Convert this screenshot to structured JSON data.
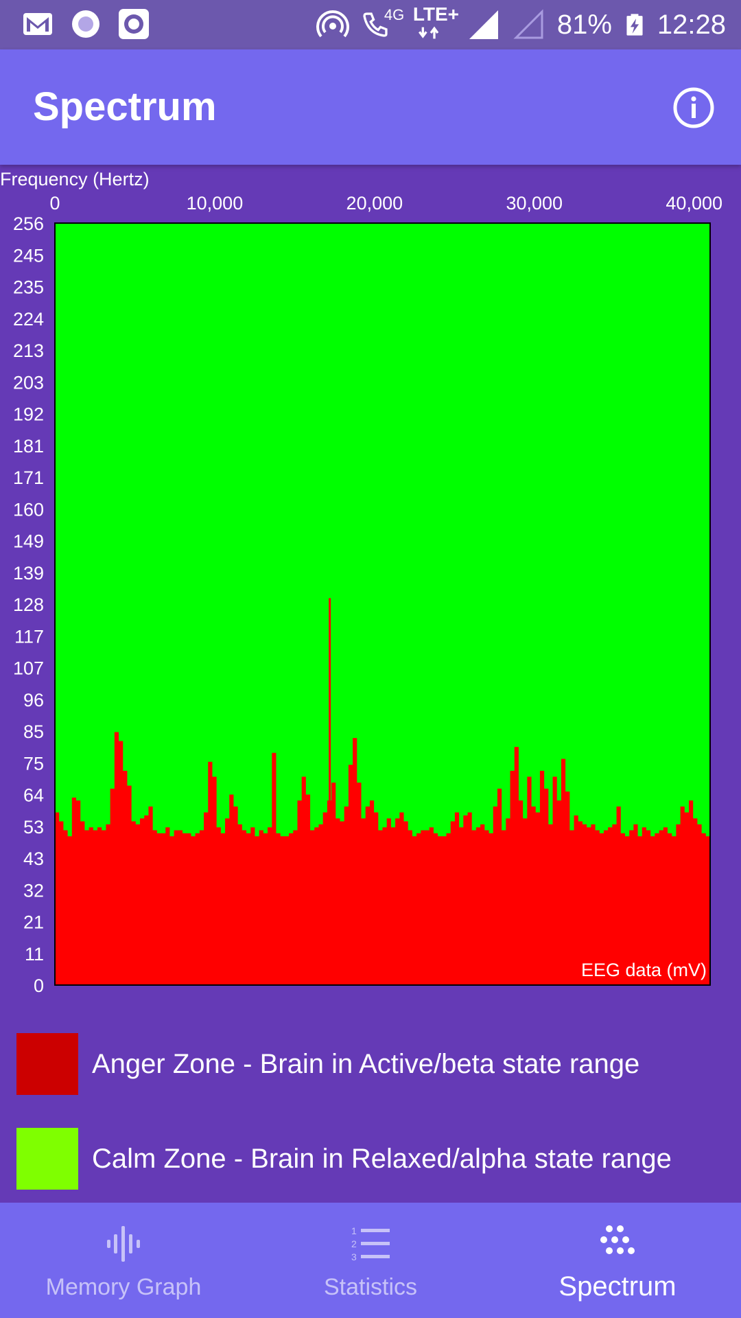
{
  "status_bar": {
    "network_label": "4G",
    "lte_label": "LTE+",
    "battery": "81%",
    "time": "12:28"
  },
  "app_bar": {
    "title": "Spectrum"
  },
  "chart_data": {
    "type": "area",
    "title": "",
    "top_axis_label": "Frequency (Hertz)",
    "inner_label": "EEG data (mV)",
    "x_ticks": [
      "0",
      "10,000",
      "20,000",
      "30,000",
      "40,000"
    ],
    "xlim": [
      0,
      41000
    ],
    "y_ticks": [
      "256",
      "245",
      "235",
      "224",
      "213",
      "203",
      "192",
      "181",
      "171",
      "160",
      "149",
      "139",
      "128",
      "117",
      "107",
      "96",
      "85",
      "75",
      "64",
      "53",
      "43",
      "32",
      "21",
      "11",
      "0"
    ],
    "ylim": [
      0,
      256
    ],
    "series": [
      {
        "name": "Anger Zone - Brain in Active/beta state range",
        "color": "#FF0000",
        "values": [
          58,
          55,
          52,
          50,
          63,
          62,
          55,
          52,
          53,
          52,
          53,
          52,
          54,
          66,
          85,
          82,
          72,
          67,
          55,
          54,
          56,
          57,
          60,
          52,
          51,
          51,
          53,
          50,
          52,
          52,
          51,
          51,
          50,
          51,
          52,
          58,
          75,
          70,
          53,
          51,
          56,
          64,
          60,
          54,
          52,
          51,
          53,
          50,
          52,
          51,
          53,
          78,
          51,
          50,
          50,
          51,
          52,
          62,
          70,
          64,
          52,
          53,
          54,
          58,
          62,
          68,
          56,
          55,
          60,
          74,
          83,
          68,
          56,
          60,
          62,
          58,
          52,
          53,
          56,
          53,
          56,
          58,
          55,
          52,
          50,
          51,
          52,
          52,
          53,
          51,
          50,
          50,
          51,
          55,
          58,
          53,
          57,
          58,
          52,
          53,
          54,
          52,
          51,
          60,
          66,
          52,
          56,
          72,
          80,
          62,
          56,
          70,
          60,
          58,
          72,
          66,
          54,
          70,
          62,
          76,
          65,
          52,
          57,
          55,
          54,
          53,
          54,
          52,
          51,
          52,
          53,
          54,
          60,
          51,
          50,
          52,
          54,
          50,
          53,
          52,
          50,
          51,
          52,
          53,
          51,
          50,
          54,
          60,
          58,
          62,
          56,
          54,
          51,
          50
        ]
      },
      {
        "name": "Calm Zone - Brain in Relaxed/alpha state range",
        "color": "#00FF00"
      }
    ],
    "spike": {
      "x": 17200,
      "y": 130
    },
    "legend": "bottom"
  },
  "legend": {
    "anger": {
      "label": "Anger Zone - Brain in Active/beta state range",
      "color": "#CC0000"
    },
    "calm": {
      "label": "Calm Zone - Brain in Relaxed/alpha state range",
      "color": "#7FFF00"
    }
  },
  "bottom_nav": {
    "items": [
      {
        "label": "Memory Graph",
        "icon": "waveform-icon",
        "active": false
      },
      {
        "label": "Statistics",
        "icon": "numbered-list-icon",
        "active": false
      },
      {
        "label": "Spectrum",
        "icon": "dots-grid-icon",
        "active": true
      }
    ]
  }
}
